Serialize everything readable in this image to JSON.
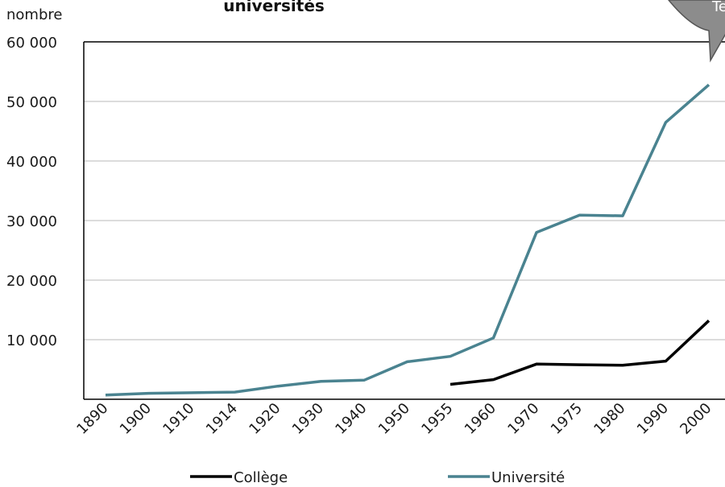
{
  "colors": {
    "college": "#000000",
    "universite": "#4a8390",
    "grid": "#d0d0d0",
    "callout_fill": "#8c8c8c",
    "callout_stroke": "#555555"
  },
  "chart_data": {
    "type": "line",
    "title": "universités",
    "ylabel": "nombre",
    "xlabel": "",
    "categories": [
      "1890",
      "1900",
      "1910",
      "1914",
      "1920",
      "1930",
      "1940",
      "1950",
      "1955",
      "1960",
      "1970",
      "1975",
      "1980",
      "1990",
      "2000"
    ],
    "yticks": [
      "10 000",
      "20 000",
      "30 000",
      "40 000",
      "50 000",
      "60 000"
    ],
    "ylim": [
      0,
      60000
    ],
    "grid": true,
    "legend_position": "bottom",
    "series": [
      {
        "name": "Collège",
        "values": [
          null,
          null,
          null,
          null,
          null,
          null,
          null,
          null,
          2500,
          3300,
          5900,
          5800,
          5700,
          6400,
          13200
        ]
      },
      {
        "name": "Université",
        "values": [
          700,
          1000,
          1100,
          1200,
          2200,
          3000,
          3200,
          6300,
          7200,
          10300,
          28000,
          30900,
          30800,
          46500,
          52800
        ]
      }
    ],
    "callout_text": "Te"
  }
}
